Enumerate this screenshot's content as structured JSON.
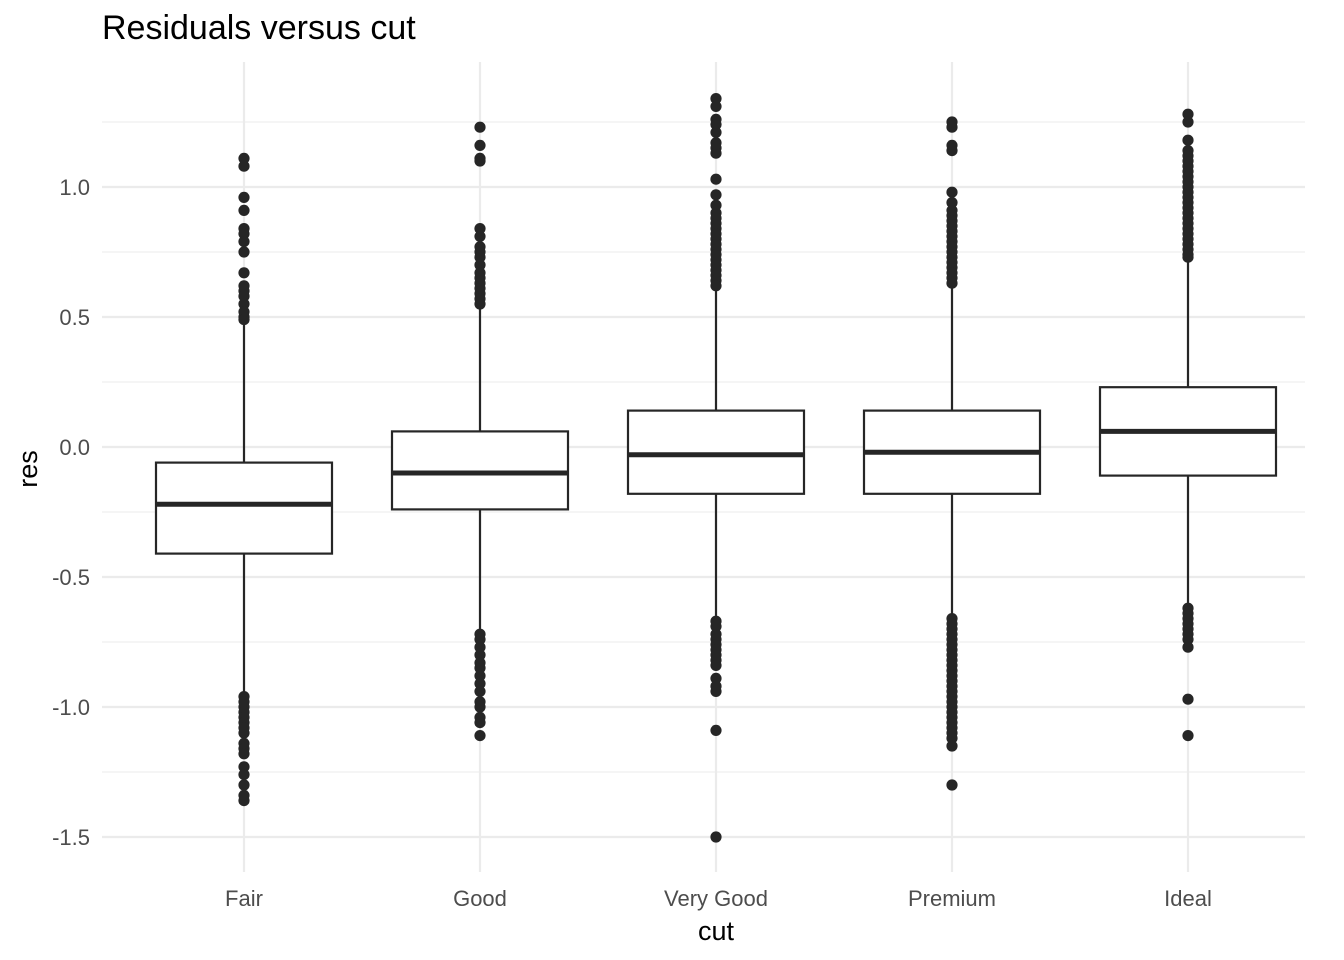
{
  "chart_data": {
    "type": "boxplot",
    "title": "Residuals versus cut",
    "xlabel": "cut",
    "ylabel": "res",
    "ylim": [
      -1.55,
      1.4
    ],
    "grid": true,
    "y_ticks": [
      {
        "value": -1.5,
        "label": "-1.5"
      },
      {
        "value": -1.0,
        "label": "-1.0"
      },
      {
        "value": -0.5,
        "label": "-0.5"
      },
      {
        "value": 0.0,
        "label": "0.0"
      },
      {
        "value": 0.5,
        "label": "0.5"
      },
      {
        "value": 1.0,
        "label": "1.0"
      }
    ],
    "categories": [
      "Fair",
      "Good",
      "Very Good",
      "Premium",
      "Ideal"
    ],
    "boxes": [
      {
        "category": "Fair",
        "whisker_low": -0.95,
        "q1": -0.41,
        "median": -0.22,
        "q3": -0.06,
        "whisker_high": 0.48,
        "outliers": [
          1.11,
          1.08,
          0.96,
          0.91,
          0.84,
          0.82,
          0.79,
          0.75,
          0.67,
          0.62,
          0.6,
          0.58,
          0.55,
          0.52,
          0.5,
          0.49,
          -0.96,
          -0.98,
          -1.0,
          -1.02,
          -1.04,
          -1.06,
          -1.08,
          -1.1,
          -1.14,
          -1.16,
          -1.18,
          -1.23,
          -1.26,
          -1.3,
          -1.34,
          -1.36
        ]
      },
      {
        "category": "Good",
        "whisker_low": -0.71,
        "q1": -0.24,
        "median": -0.1,
        "q3": 0.06,
        "whisker_high": 0.54,
        "outliers": [
          1.23,
          1.16,
          1.11,
          1.1,
          0.84,
          0.81,
          0.77,
          0.75,
          0.73,
          0.7,
          0.67,
          0.65,
          0.63,
          0.61,
          0.59,
          0.57,
          0.55,
          -0.72,
          -0.74,
          -0.77,
          -0.8,
          -0.83,
          -0.85,
          -0.88,
          -0.91,
          -0.94,
          -0.98,
          -1.0,
          -1.04,
          -1.06,
          -1.11
        ]
      },
      {
        "category": "Very Good",
        "whisker_low": -0.66,
        "q1": -0.18,
        "median": -0.03,
        "q3": 0.14,
        "whisker_high": 0.61,
        "outliers": [
          1.34,
          1.31,
          1.26,
          1.24,
          1.21,
          1.17,
          1.15,
          1.13,
          1.03,
          0.97,
          0.93,
          0.9,
          0.88,
          0.86,
          0.84,
          0.82,
          0.8,
          0.78,
          0.76,
          0.74,
          0.72,
          0.7,
          0.68,
          0.66,
          0.64,
          0.62,
          -0.67,
          -0.69,
          -0.72,
          -0.74,
          -0.76,
          -0.78,
          -0.8,
          -0.82,
          -0.84,
          -0.89,
          -0.92,
          -0.94,
          -1.09,
          -1.5
        ]
      },
      {
        "category": "Premium",
        "whisker_low": -0.65,
        "q1": -0.18,
        "median": -0.02,
        "q3": 0.14,
        "whisker_high": 0.62,
        "outliers": [
          1.25,
          1.23,
          1.16,
          1.14,
          0.98,
          0.94,
          0.91,
          0.89,
          0.87,
          0.85,
          0.83,
          0.81,
          0.79,
          0.77,
          0.75,
          0.73,
          0.71,
          0.69,
          0.67,
          0.65,
          0.63,
          -0.66,
          -0.68,
          -0.7,
          -0.72,
          -0.74,
          -0.76,
          -0.78,
          -0.8,
          -0.82,
          -0.84,
          -0.86,
          -0.88,
          -0.9,
          -0.92,
          -0.94,
          -0.96,
          -0.98,
          -1.0,
          -1.02,
          -1.04,
          -1.06,
          -1.08,
          -1.1,
          -1.12,
          -1.15,
          -1.3
        ]
      },
      {
        "category": "Ideal",
        "whisker_low": -0.61,
        "q1": -0.11,
        "median": 0.06,
        "q3": 0.23,
        "whisker_high": 0.72,
        "outliers": [
          1.28,
          1.25,
          1.18,
          1.14,
          1.12,
          1.1,
          1.08,
          1.06,
          1.04,
          1.02,
          1.0,
          0.98,
          0.96,
          0.94,
          0.92,
          0.9,
          0.88,
          0.86,
          0.84,
          0.82,
          0.8,
          0.78,
          0.76,
          0.74,
          0.73,
          -0.62,
          -0.64,
          -0.66,
          -0.68,
          -0.7,
          -0.72,
          -0.74,
          -0.77,
          -0.97,
          -1.11
        ]
      }
    ]
  }
}
